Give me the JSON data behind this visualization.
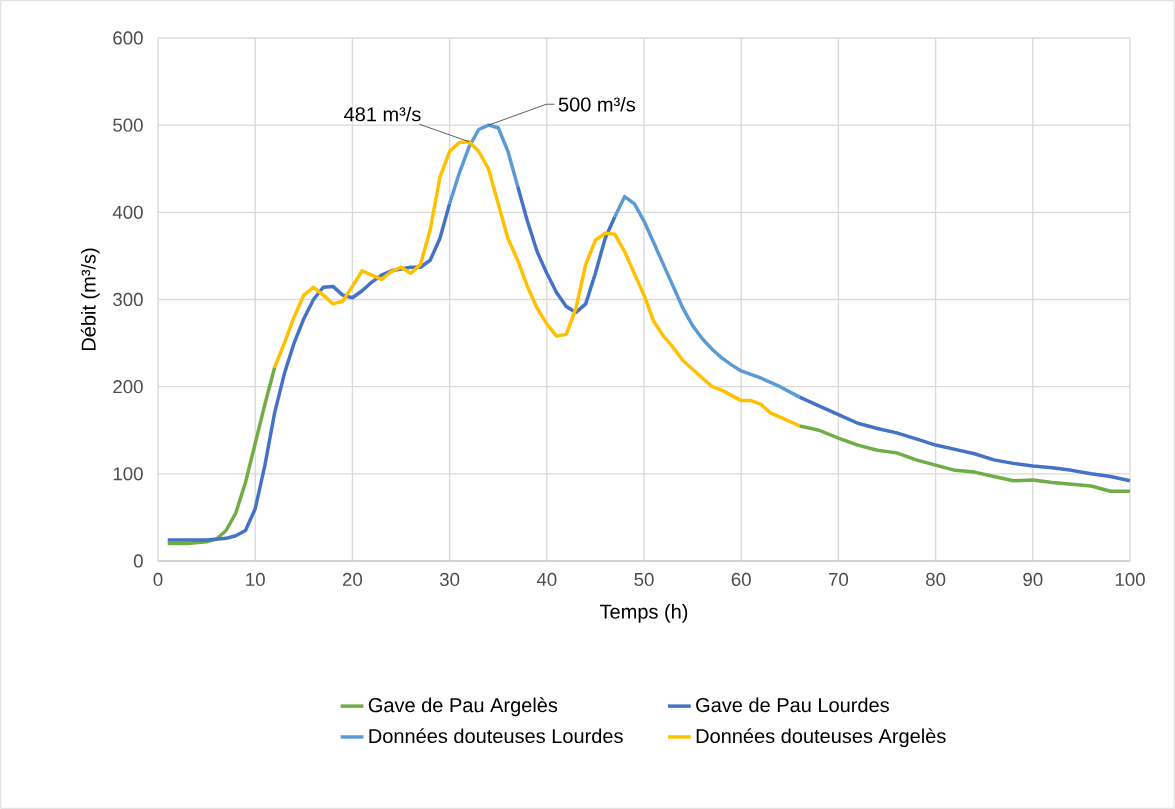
{
  "chart_data": {
    "type": "line",
    "xlabel": "Temps (h)",
    "ylabel": "Débit (m³/s)",
    "xlim": [
      0,
      100
    ],
    "xticks": [
      0,
      10,
      20,
      30,
      40,
      50,
      60,
      70,
      80,
      90,
      100
    ],
    "ylim": [
      0,
      600
    ],
    "yticks": [
      0,
      100,
      200,
      300,
      400,
      500,
      600
    ],
    "grid": true,
    "legend": "bottom",
    "marker": "none",
    "line_style": "solid",
    "series": [
      {
        "name": "Gave de Pau Argelès",
        "color": "#70ad47",
        "x": [
          1,
          3,
          5,
          6,
          7,
          8,
          9,
          10,
          11,
          12,
          40,
          66,
          68,
          70,
          72,
          74,
          76,
          78,
          80,
          82,
          84,
          86,
          88,
          90,
          92,
          94,
          96,
          98,
          100
        ],
        "values": [
          20,
          20,
          22,
          25,
          35,
          55,
          90,
          135,
          180,
          222,
          null,
          155,
          150,
          141,
          133,
          127,
          124,
          116,
          110,
          104,
          102,
          97,
          92,
          93,
          90,
          88,
          86,
          80,
          80
        ]
      },
      {
        "name": "Gave de Pau Lourdes",
        "color": "#4472c4",
        "x": [
          1,
          3,
          5,
          7,
          8,
          9,
          10,
          11,
          12,
          13,
          14,
          15,
          16,
          17,
          18,
          19,
          20,
          21,
          22,
          23,
          24,
          25,
          26,
          27,
          28,
          29,
          30,
          33,
          37,
          38,
          39,
          40,
          41,
          42,
          43,
          44,
          45,
          46,
          47,
          55,
          66,
          68,
          70,
          72,
          74,
          76,
          78,
          80,
          82,
          84,
          86,
          88,
          90,
          92,
          94,
          96,
          98,
          100
        ],
        "values": [
          24,
          24,
          24,
          26,
          29,
          35,
          60,
          110,
          170,
          215,
          250,
          278,
          300,
          314,
          315,
          305,
          302,
          310,
          320,
          328,
          333,
          335,
          337,
          337,
          345,
          370,
          410,
          null,
          430,
          390,
          355,
          330,
          308,
          292,
          285,
          295,
          330,
          370,
          395,
          null,
          188,
          178,
          168,
          158,
          152,
          147,
          140,
          133,
          128,
          123,
          116,
          112,
          109,
          107,
          104,
          100,
          97,
          92
        ]
      },
      {
        "name": "Données douteuses Lourdes",
        "color": "#5b9bd5",
        "x": [
          30,
          31,
          32,
          33,
          34,
          35,
          36,
          37,
          42,
          47,
          48,
          49,
          50,
          51,
          52,
          53,
          54,
          55,
          56,
          57,
          58,
          59,
          60,
          62,
          64,
          66
        ],
        "values": [
          410,
          445,
          475,
          495,
          500,
          497,
          470,
          430,
          null,
          395,
          418,
          410,
          390,
          365,
          340,
          315,
          290,
          270,
          255,
          243,
          233,
          225,
          218,
          210,
          200,
          188
        ]
      },
      {
        "name": "Données douteuses Argelès",
        "color": "#ffc000",
        "x": [
          12,
          13,
          14,
          15,
          16,
          17,
          18,
          19,
          20,
          21,
          22,
          23,
          24,
          25,
          26,
          27,
          28,
          29,
          30,
          31,
          32,
          33,
          34,
          35,
          36,
          37,
          38,
          39,
          40,
          41,
          42,
          43,
          44,
          45,
          46,
          47,
          48,
          49,
          50,
          51,
          52,
          53,
          54,
          55,
          56,
          57,
          58,
          59,
          60,
          61,
          62,
          63,
          64,
          65,
          66
        ],
        "values": [
          222,
          250,
          280,
          305,
          314,
          305,
          295,
          298,
          315,
          333,
          328,
          323,
          332,
          337,
          330,
          340,
          380,
          440,
          470,
          480,
          481,
          470,
          450,
          410,
          370,
          345,
          315,
          290,
          272,
          258,
          260,
          290,
          340,
          368,
          376,
          375,
          355,
          330,
          305,
          275,
          258,
          245,
          230,
          220,
          210,
          200,
          196,
          190,
          184,
          184,
          180,
          170,
          165,
          160,
          155
        ]
      }
    ],
    "annotations": [
      {
        "text": "481 m³/s",
        "x": 32,
        "y": 481
      },
      {
        "text": "500 m³/s",
        "x": 34,
        "y": 500
      }
    ]
  }
}
